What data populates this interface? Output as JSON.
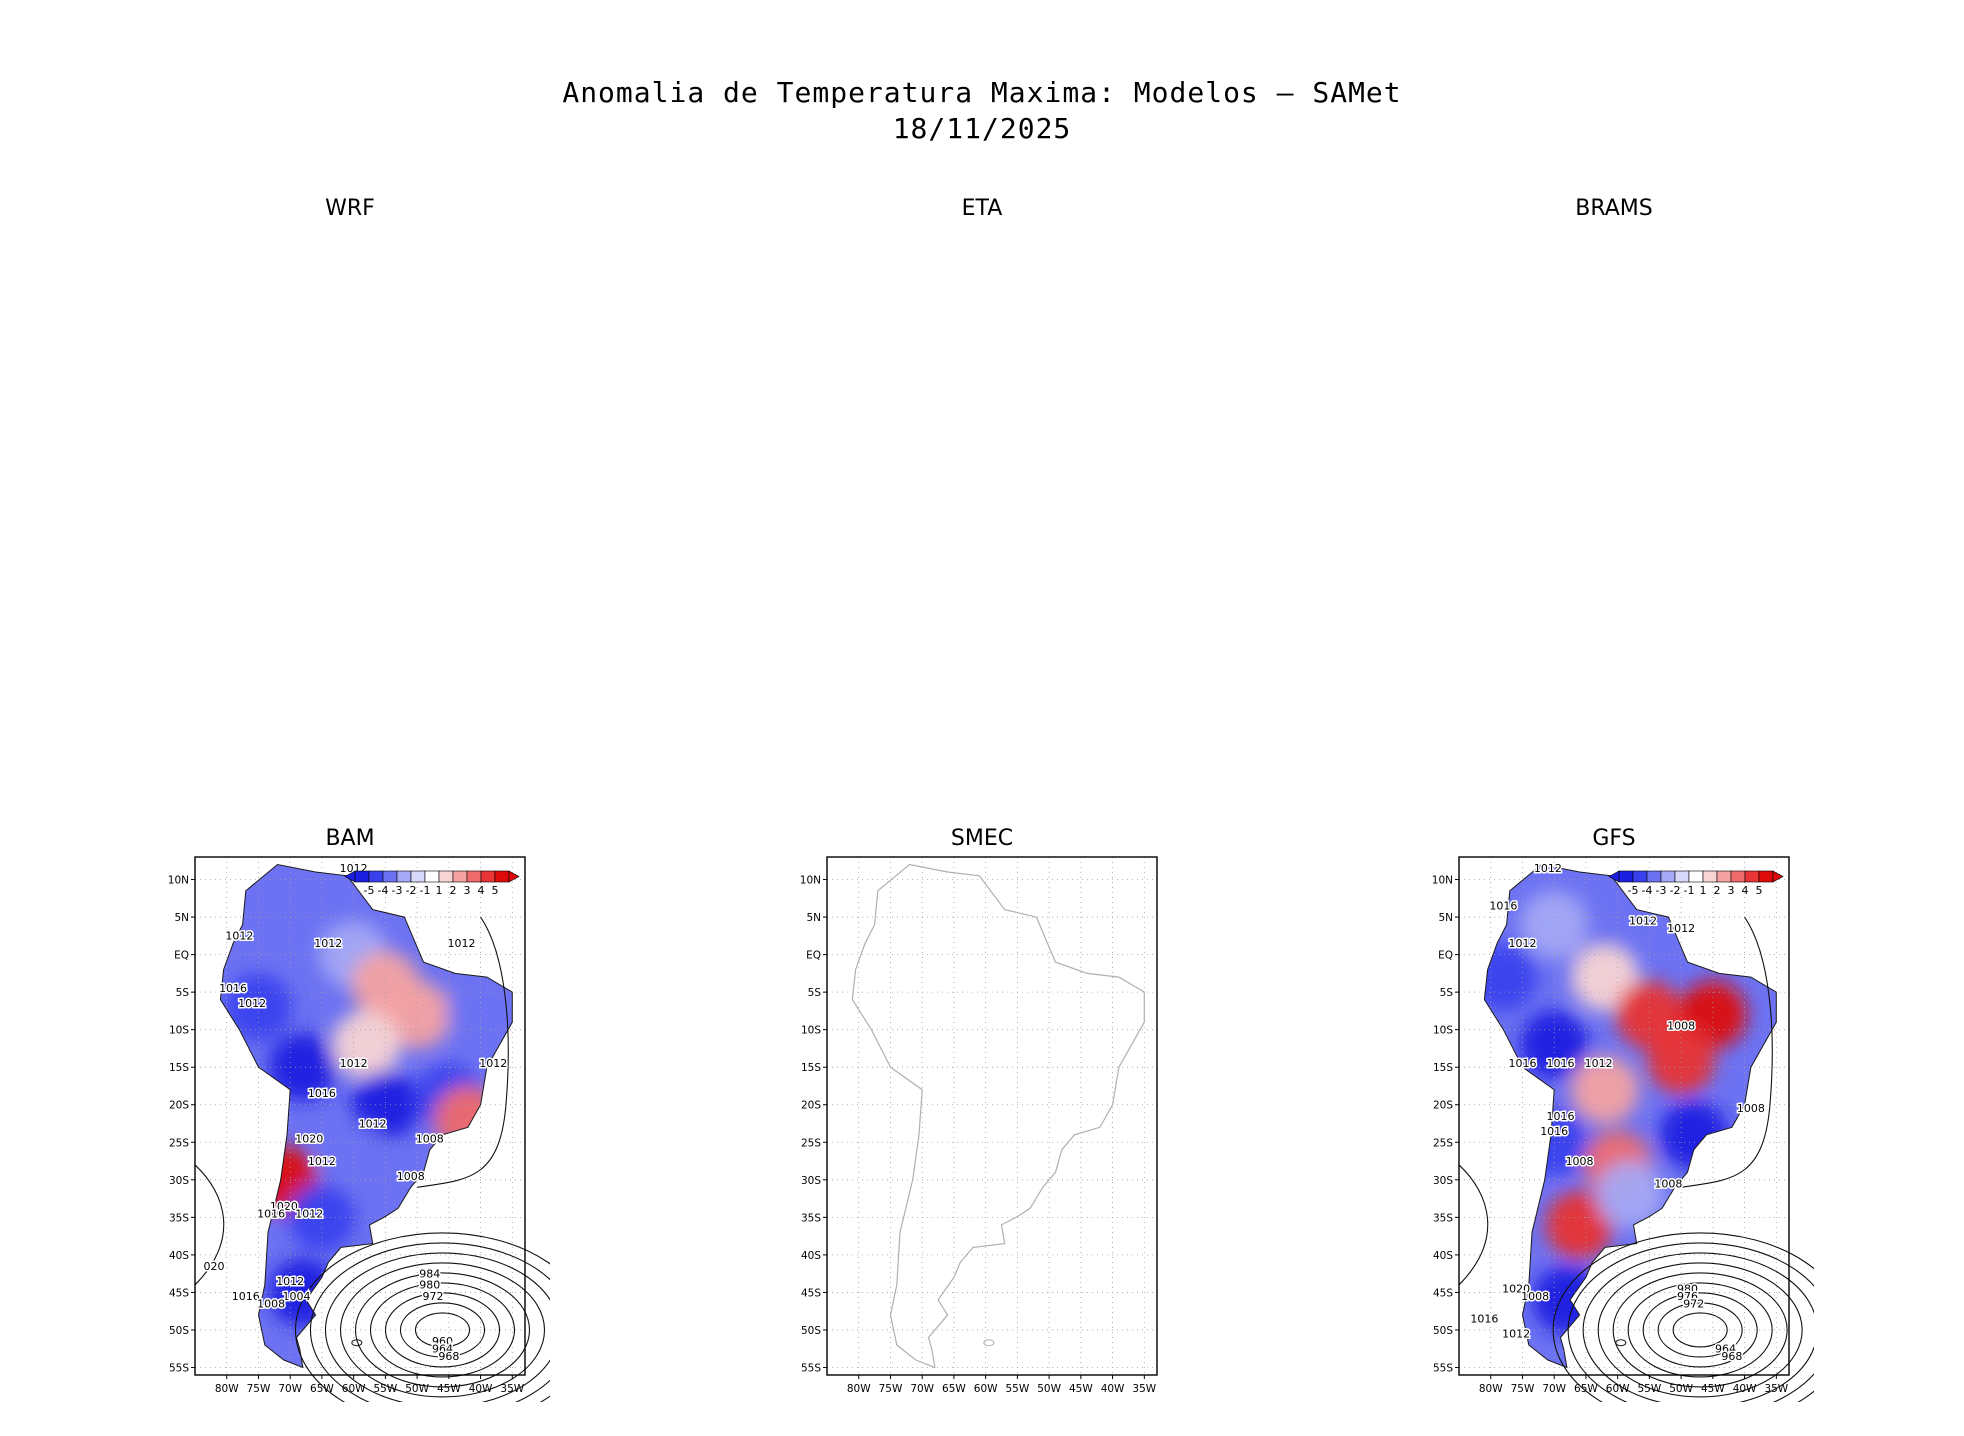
{
  "figure": {
    "title": "Anomalia de Temperatura Maxima: Modelos — SAMet",
    "date": "18/11/2025"
  },
  "colors": {
    "neg5": "#1a1fe0",
    "neg4": "#3a40ee",
    "neg3": "#6c72f2",
    "neg2": "#a4a8f6",
    "neg1": "#d6d8fa",
    "zero": "#ffffff",
    "pos1": "#f8d4d4",
    "pos2": "#f4a2a2",
    "pos3": "#ef6b6b",
    "pos4": "#e83434",
    "pos5": "#dc0a0a",
    "coast": "#1a1a1a",
    "coast_empty": "#b0b0b0",
    "grid": "#a0a0a0"
  },
  "chart_data": [
    {
      "type": "heatmap",
      "title": "WRF",
      "has_plot": false
    },
    {
      "type": "heatmap",
      "title": "ETA",
      "has_plot": false
    },
    {
      "type": "heatmap",
      "title": "BRAMS",
      "has_plot": false
    },
    {
      "type": "heatmap",
      "title": "BAM",
      "has_plot": true,
      "xlim": [
        -85,
        -33
      ],
      "ylim": [
        -56,
        13
      ],
      "x_ticks": [
        "80W",
        "75W",
        "70W",
        "65W",
        "60W",
        "55W",
        "50W",
        "45W",
        "40W",
        "35W"
      ],
      "y_ticks": [
        "10N",
        "5N",
        "EQ",
        "5S",
        "10S",
        "15S",
        "20S",
        "25S",
        "30S",
        "35S",
        "40S",
        "45S",
        "50S",
        "55S"
      ],
      "legend": {
        "position": "top-right",
        "levels": [
          "-5",
          "-4",
          "-3",
          "-2",
          "-1",
          "1",
          "2",
          "3",
          "4",
          "5"
        ]
      },
      "regions": [
        {
          "lon": -70,
          "lat": 3,
          "anomaly": -3
        },
        {
          "lon": -60,
          "lat": 0,
          "anomaly": -2
        },
        {
          "lon": -75,
          "lat": -7,
          "anomaly": -4
        },
        {
          "lon": -55,
          "lat": -4,
          "anomaly": 2
        },
        {
          "lon": -50,
          "lat": -8,
          "anomaly": 2
        },
        {
          "lon": -40,
          "lat": -8,
          "anomaly": -3
        },
        {
          "lon": -58,
          "lat": -12,
          "anomaly": 1
        },
        {
          "lon": -68,
          "lat": -15,
          "anomaly": -5
        },
        {
          "lon": -55,
          "lat": -20,
          "anomaly": -5
        },
        {
          "lon": -45,
          "lat": -19,
          "anomaly": -4
        },
        {
          "lon": -42,
          "lat": -22,
          "anomaly": 3
        },
        {
          "lon": -60,
          "lat": -27,
          "anomaly": -3
        },
        {
          "lon": -71,
          "lat": -30,
          "anomaly": 5
        },
        {
          "lon": -65,
          "lat": -35,
          "anomaly": -4
        },
        {
          "lon": -68,
          "lat": -45,
          "anomaly": -5
        }
      ],
      "isobar_labels": [
        {
          "lon": -60,
          "lat": 11,
          "text": "1012"
        },
        {
          "lon": -78,
          "lat": 2,
          "text": "1012"
        },
        {
          "lon": -64,
          "lat": 1,
          "text": "1012"
        },
        {
          "lon": -43,
          "lat": 1,
          "text": "1012"
        },
        {
          "lon": -79,
          "lat": -5,
          "text": "1016"
        },
        {
          "lon": -76,
          "lat": -7,
          "text": "1012"
        },
        {
          "lon": -60,
          "lat": -15,
          "text": "1012"
        },
        {
          "lon": -38,
          "lat": -15,
          "text": "1012"
        },
        {
          "lon": -65,
          "lat": -19,
          "text": "1016"
        },
        {
          "lon": -57,
          "lat": -23,
          "text": "1012"
        },
        {
          "lon": -48,
          "lat": -25,
          "text": "1008"
        },
        {
          "lon": -67,
          "lat": -25,
          "text": "1020"
        },
        {
          "lon": -65,
          "lat": -28,
          "text": "1012"
        },
        {
          "lon": -51,
          "lat": -30,
          "text": "1008"
        },
        {
          "lon": -71,
          "lat": -34,
          "text": "1020"
        },
        {
          "lon": -73,
          "lat": -35,
          "text": "1016"
        },
        {
          "lon": -67,
          "lat": -35,
          "text": "1012"
        },
        {
          "lon": -82,
          "lat": -42,
          "text": "020"
        },
        {
          "lon": -70,
          "lat": -44,
          "text": "1012"
        },
        {
          "lon": -77,
          "lat": -46,
          "text": "1016"
        },
        {
          "lon": -69,
          "lat": -46,
          "text": "1004"
        },
        {
          "lon": -73,
          "lat": -47,
          "text": "1008"
        },
        {
          "lon": -48,
          "lat": -43,
          "text": "984"
        },
        {
          "lon": -48,
          "lat": -44.5,
          "text": "980"
        },
        {
          "lon": -47.5,
          "lat": -46,
          "text": "972"
        },
        {
          "lon": -46,
          "lat": -52,
          "text": "960"
        },
        {
          "lon": -46,
          "lat": -53,
          "text": "964"
        },
        {
          "lon": -45,
          "lat": -54,
          "text": "968"
        }
      ],
      "low_center": {
        "lon": -46,
        "lat": -50
      }
    },
    {
      "type": "heatmap",
      "title": "SMEC",
      "has_plot": true,
      "empty": true,
      "xlim": [
        -85,
        -33
      ],
      "ylim": [
        -56,
        13
      ],
      "x_ticks": [
        "80W",
        "75W",
        "70W",
        "65W",
        "60W",
        "55W",
        "50W",
        "45W",
        "40W",
        "35W"
      ],
      "y_ticks": [
        "10N",
        "5N",
        "EQ",
        "5S",
        "10S",
        "15S",
        "20S",
        "25S",
        "30S",
        "35S",
        "40S",
        "45S",
        "50S",
        "55S"
      ]
    },
    {
      "type": "heatmap",
      "title": "GFS",
      "has_plot": true,
      "xlim": [
        -85,
        -33
      ],
      "ylim": [
        -56,
        13
      ],
      "x_ticks": [
        "80W",
        "75W",
        "70W",
        "65W",
        "60W",
        "55W",
        "50W",
        "45W",
        "40W",
        "35W"
      ],
      "y_ticks": [
        "10N",
        "5N",
        "EQ",
        "5S",
        "10S",
        "15S",
        "20S",
        "25S",
        "30S",
        "35S",
        "40S",
        "45S",
        "50S",
        "55S"
      ],
      "legend": {
        "position": "top-right",
        "levels": [
          "-5",
          "-4",
          "-3",
          "-2",
          "-1",
          "1",
          "2",
          "3",
          "4",
          "5"
        ]
      },
      "regions": [
        {
          "lon": -70,
          "lat": 4,
          "anomaly": -2
        },
        {
          "lon": -78,
          "lat": -3,
          "anomaly": -4
        },
        {
          "lon": -62,
          "lat": -3,
          "anomaly": 1
        },
        {
          "lon": -55,
          "lat": -8,
          "anomaly": 4
        },
        {
          "lon": -45,
          "lat": -8,
          "anomaly": 5
        },
        {
          "lon": -50,
          "lat": -14,
          "anomaly": 4
        },
        {
          "lon": -70,
          "lat": -12,
          "anomaly": -5
        },
        {
          "lon": -62,
          "lat": -18,
          "anomaly": 2
        },
        {
          "lon": -48,
          "lat": -24,
          "anomaly": -5
        },
        {
          "lon": -70,
          "lat": -25,
          "anomaly": -4
        },
        {
          "lon": -60,
          "lat": -28,
          "anomaly": 3
        },
        {
          "lon": -66,
          "lat": -36,
          "anomaly": 4
        },
        {
          "lon": -58,
          "lat": -32,
          "anomaly": -2
        },
        {
          "lon": -68,
          "lat": -46,
          "anomaly": -5
        }
      ],
      "isobar_labels": [
        {
          "lon": -71,
          "lat": 11,
          "text": "1012"
        },
        {
          "lon": -78,
          "lat": 6,
          "text": "1016"
        },
        {
          "lon": -75,
          "lat": 1,
          "text": "1012"
        },
        {
          "lon": -56,
          "lat": 4,
          "text": "1012"
        },
        {
          "lon": -50,
          "lat": 3,
          "text": "1012"
        },
        {
          "lon": -50,
          "lat": -10,
          "text": "1008"
        },
        {
          "lon": -75,
          "lat": -15,
          "text": "1016"
        },
        {
          "lon": -69,
          "lat": -15,
          "text": "1016"
        },
        {
          "lon": -63,
          "lat": -15,
          "text": "1012"
        },
        {
          "lon": -39,
          "lat": -21,
          "text": "1008"
        },
        {
          "lon": -69,
          "lat": -22,
          "text": "1016"
        },
        {
          "lon": -70,
          "lat": -24,
          "text": "1016"
        },
        {
          "lon": -66,
          "lat": -28,
          "text": "1008"
        },
        {
          "lon": -52,
          "lat": -31,
          "text": "1008"
        },
        {
          "lon": -76,
          "lat": -45,
          "text": "1020"
        },
        {
          "lon": -73,
          "lat": -46,
          "text": "1008"
        },
        {
          "lon": -81,
          "lat": -49,
          "text": "1016"
        },
        {
          "lon": -76,
          "lat": -51,
          "text": "1012"
        },
        {
          "lon": -49,
          "lat": -45,
          "text": "980"
        },
        {
          "lon": -49,
          "lat": -46,
          "text": "976"
        },
        {
          "lon": -48,
          "lat": -47,
          "text": "972"
        },
        {
          "lon": -43,
          "lat": -53,
          "text": "964"
        },
        {
          "lon": -42,
          "lat": -54,
          "text": "968"
        }
      ],
      "low_center": {
        "lon": -47,
        "lat": -50
      }
    }
  ]
}
